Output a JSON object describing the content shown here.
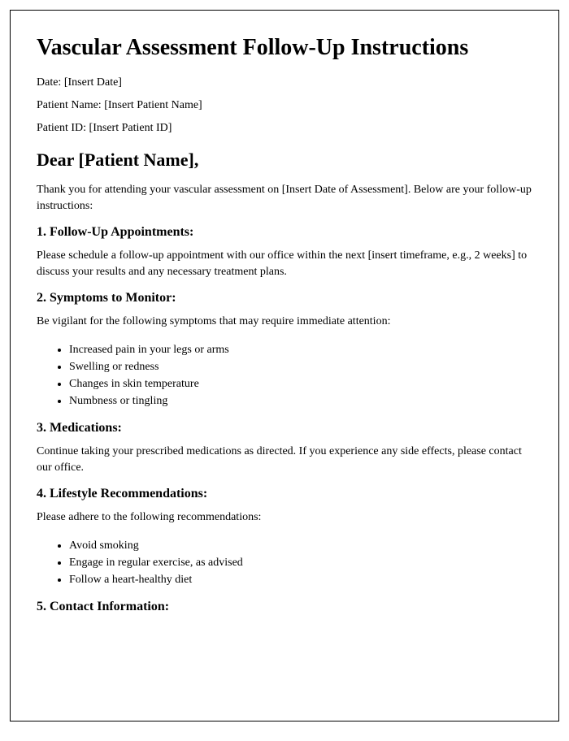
{
  "title": "Vascular Assessment Follow-Up Instructions",
  "meta": {
    "date_label": "Date: ",
    "date_value": "[Insert Date]",
    "patient_name_label": "Patient Name: ",
    "patient_name_value": "[Insert Patient Name]",
    "patient_id_label": "Patient ID: ",
    "patient_id_value": "[Insert Patient ID]"
  },
  "salutation": "Dear [Patient Name],",
  "intro": "Thank you for attending your vascular assessment on [Insert Date of Assessment]. Below are your follow-up instructions:",
  "sections": {
    "s1": {
      "heading": "1. Follow-Up Appointments:",
      "text": "Please schedule a follow-up appointment with our office within the next [insert timeframe, e.g., 2 weeks] to discuss your results and any necessary treatment plans."
    },
    "s2": {
      "heading": "2. Symptoms to Monitor:",
      "text": "Be vigilant for the following symptoms that may require immediate attention:",
      "items": [
        "Increased pain in your legs or arms",
        "Swelling or redness",
        "Changes in skin temperature",
        "Numbness or tingling"
      ]
    },
    "s3": {
      "heading": "3. Medications:",
      "text": "Continue taking your prescribed medications as directed. If you experience any side effects, please contact our office."
    },
    "s4": {
      "heading": "4. Lifestyle Recommendations:",
      "text": "Please adhere to the following recommendations:",
      "items": [
        "Avoid smoking",
        "Engage in regular exercise, as advised",
        "Follow a heart-healthy diet"
      ]
    },
    "s5": {
      "heading": "5. Contact Information:"
    }
  }
}
